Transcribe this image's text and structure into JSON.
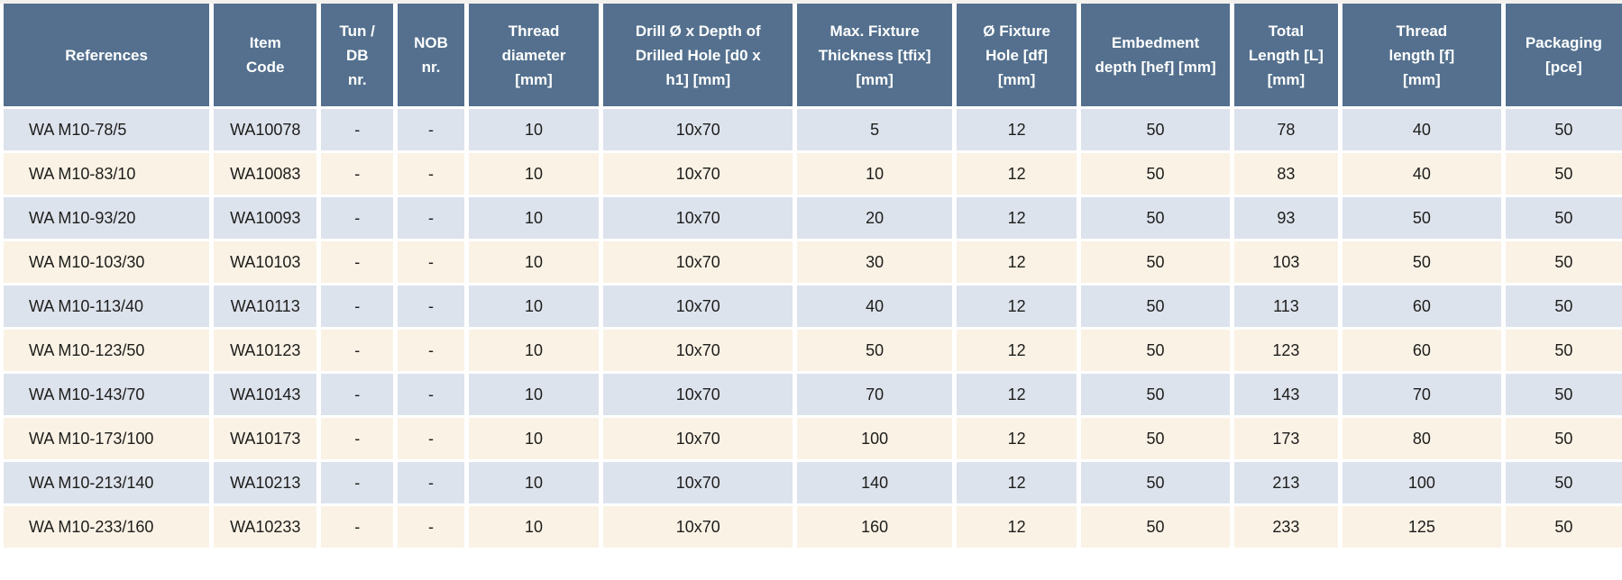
{
  "colors": {
    "header_bg": "#54708e",
    "row_blue": "#dde3ed",
    "row_cream": "#faf2e5",
    "header_text": "#ffffff",
    "cell_text": "#1d1d1b",
    "grid_line": "#ffffff",
    "page_bg": "#ffffff",
    "top_strip": "#f3f1ee"
  },
  "table": {
    "columns": [
      {
        "key": "references",
        "label": "References"
      },
      {
        "key": "item-code",
        "label": "Item\nCode"
      },
      {
        "key": "tun-db-nr",
        "label": "Tun /\nDB\nnr."
      },
      {
        "key": "nob-nr",
        "label": "NOB\nnr."
      },
      {
        "key": "thread-diameter",
        "label": "Thread\ndiameter\n[mm]"
      },
      {
        "key": "drill-depth",
        "label": "Drill Ø x Depth of\nDrilled Hole [d0 x\nh1] [mm]"
      },
      {
        "key": "max-fixture-thickness",
        "label": "Max. Fixture\nThickness [tfix]\n[mm]"
      },
      {
        "key": "fixture-hole",
        "label": "Ø Fixture\nHole [df]\n[mm]"
      },
      {
        "key": "embedment-depth",
        "label": "Embedment\ndepth [hef] [mm]"
      },
      {
        "key": "total-length",
        "label": "Total\nLength [L]\n[mm]"
      },
      {
        "key": "thread-length",
        "label": "Thread\nlength [f]\n[mm]"
      },
      {
        "key": "packaging",
        "label": "Packaging\n[pce]"
      }
    ],
    "rows": [
      [
        "WA M10-78/5",
        "WA10078",
        "-",
        "-",
        "10",
        "10x70",
        "5",
        "12",
        "50",
        "78",
        "40",
        "50"
      ],
      [
        "WA M10-83/10",
        "WA10083",
        "-",
        "-",
        "10",
        "10x70",
        "10",
        "12",
        "50",
        "83",
        "40",
        "50"
      ],
      [
        "WA M10-93/20",
        "WA10093",
        "-",
        "-",
        "10",
        "10x70",
        "20",
        "12",
        "50",
        "93",
        "50",
        "50"
      ],
      [
        "WA M10-103/30",
        "WA10103",
        "-",
        "-",
        "10",
        "10x70",
        "30",
        "12",
        "50",
        "103",
        "50",
        "50"
      ],
      [
        "WA M10-113/40",
        "WA10113",
        "-",
        "-",
        "10",
        "10x70",
        "40",
        "12",
        "50",
        "113",
        "60",
        "50"
      ],
      [
        "WA M10-123/50",
        "WA10123",
        "-",
        "-",
        "10",
        "10x70",
        "50",
        "12",
        "50",
        "123",
        "60",
        "50"
      ],
      [
        "WA M10-143/70",
        "WA10143",
        "-",
        "-",
        "10",
        "10x70",
        "70",
        "12",
        "50",
        "143",
        "70",
        "50"
      ],
      [
        "WA M10-173/100",
        "WA10173",
        "-",
        "-",
        "10",
        "10x70",
        "100",
        "12",
        "50",
        "173",
        "80",
        "50"
      ],
      [
        "WA M10-213/140",
        "WA10213",
        "-",
        "-",
        "10",
        "10x70",
        "140",
        "12",
        "50",
        "213",
        "100",
        "50"
      ],
      [
        "WA M10-233/160",
        "WA10233",
        "-",
        "-",
        "10",
        "10x70",
        "160",
        "12",
        "50",
        "233",
        "125",
        "50"
      ]
    ]
  }
}
